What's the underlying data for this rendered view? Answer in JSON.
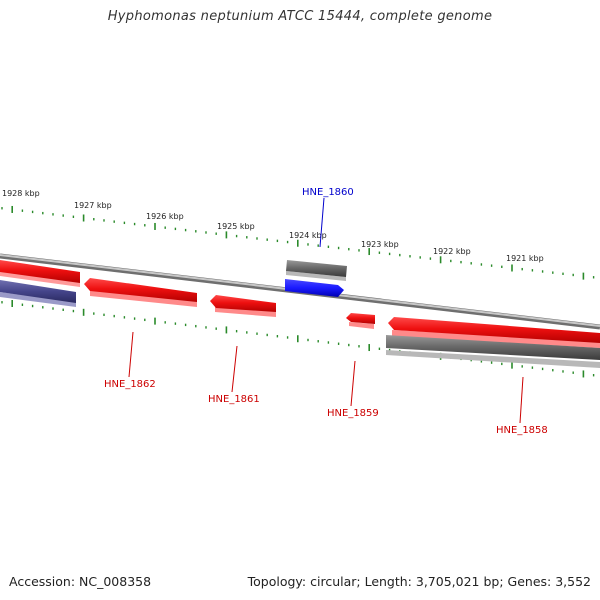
{
  "title": "Hyphomonas neptunium ATCC 15444, complete genome",
  "footer": {
    "accession": "Accession: NC_008358",
    "summary": "Topology: circular; Length: 3,705,021 bp; Genes: 3,552"
  },
  "colors": {
    "forward_cds": "#ee1c1c",
    "gene_other": "#6a6a6a",
    "gene_highlight": "#1f1fff",
    "gene_navy": "#4a4a8a",
    "backbone": "#9a9a9a",
    "tick": "#2a8a2a",
    "label_red": "#cc0000",
    "label_blue": "#0000cc"
  },
  "scale": {
    "unit": "kbp",
    "labels": [
      "1928 kbp",
      "1927 kbp",
      "1926 kbp",
      "1925 kbp",
      "1924 kbp",
      "1923 kbp",
      "1922 kbp",
      "1921 kbp"
    ]
  },
  "genes": [
    {
      "id": "g-left-red",
      "strand": "forward",
      "color": "red",
      "label": ""
    },
    {
      "id": "g-left-navy",
      "strand": "reverse",
      "color": "navy",
      "label": ""
    },
    {
      "id": "g-1862",
      "strand": "forward",
      "color": "red",
      "label": "HNE_1862"
    },
    {
      "id": "g-1861",
      "strand": "forward",
      "color": "red",
      "label": "HNE_1861"
    },
    {
      "id": "g-1860",
      "strand": "forward",
      "color": "blue",
      "label": "HNE_1860"
    },
    {
      "id": "g-grey-top",
      "strand": "forward",
      "color": "grey",
      "label": ""
    },
    {
      "id": "g-1859",
      "strand": "forward",
      "color": "red",
      "label": "HNE_1859"
    },
    {
      "id": "g-1858",
      "strand": "forward",
      "color": "red",
      "label": "HNE_1858"
    },
    {
      "id": "g-grey-bottom",
      "strand": "reverse",
      "color": "grey",
      "label": ""
    }
  ]
}
